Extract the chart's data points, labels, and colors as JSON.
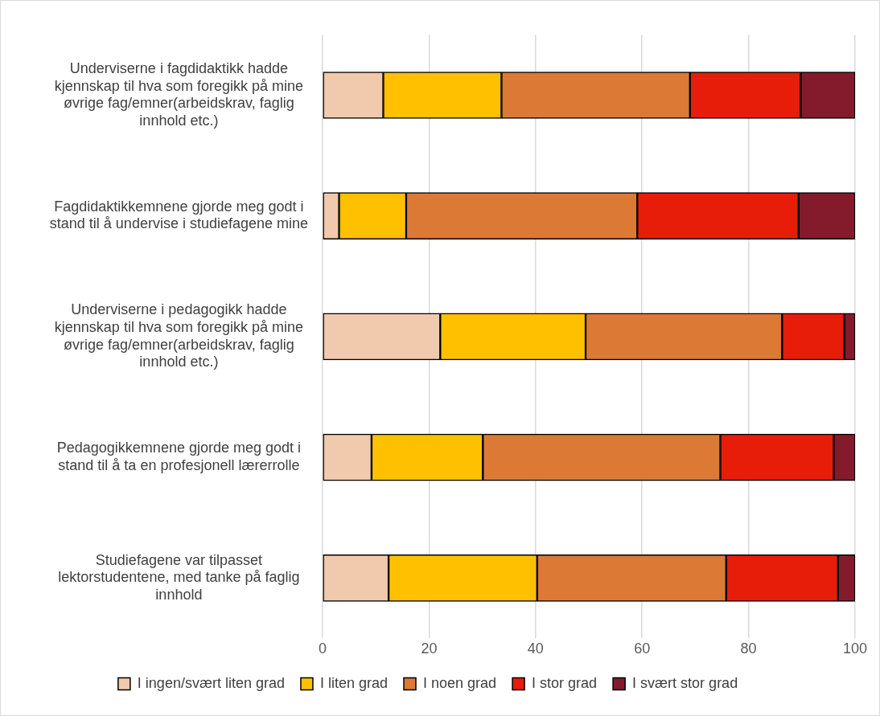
{
  "chart_data": {
    "type": "bar",
    "orientation": "horizontal",
    "stacked": true,
    "categories": [
      "Underviserne i fagdidaktikk hadde kjennskap til hva som foregikk på mine øvrige fag/emner(arbeidskrav, faglig innhold etc.)",
      "Fagdidaktikkemnene gjorde meg godt i stand til å undervise i studiefagene mine",
      "Underviserne i pedagogikk hadde kjennskap til hva som foregikk på mine øvrige fag/emner(arbeidskrav, faglig innhold etc.)",
      "Pedagogikkemnene gjorde meg godt i stand til å ta en profesjonell lærerrolle",
      "Studiefagene var tilpasset lektorstudentene, med tanke på faglig innhold"
    ],
    "series": [
      {
        "name": "I ingen/svært liten grad",
        "color": "#f1c9ad",
        "values": [
          11.4,
          3.1,
          22.1,
          9.2,
          12.4
        ]
      },
      {
        "name": "I liten grad",
        "color": "#ffc000",
        "values": [
          22.2,
          12.6,
          27.3,
          20.9,
          27.9
        ]
      },
      {
        "name": "I noen grad",
        "color": "#db7935",
        "values": [
          35.4,
          43.4,
          36.9,
          44.6,
          35.5
        ]
      },
      {
        "name": "I stor grad",
        "color": "#e71d09",
        "values": [
          20.8,
          30.3,
          11.7,
          21.3,
          21.0
        ]
      },
      {
        "name": "I svært stor grad",
        "color": "#841b2d",
        "values": [
          10.2,
          10.6,
          2.0,
          4.0,
          3.2
        ]
      }
    ],
    "xlim": [
      0,
      100
    ],
    "xticks": [
      0,
      20,
      40,
      60,
      80,
      100
    ],
    "grid": "x",
    "legend": "bottom"
  }
}
